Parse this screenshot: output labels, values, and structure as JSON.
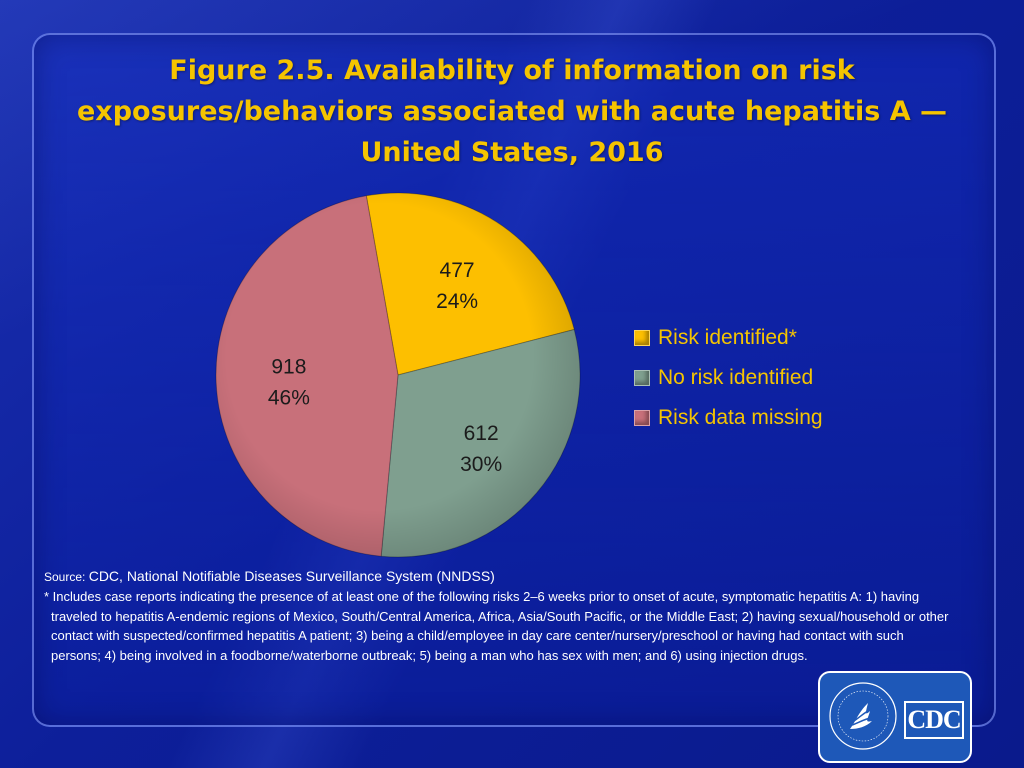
{
  "title": "Figure 2.5. Availability of information on risk exposures/behaviors associated with acute hepatitis A — United States, 2016",
  "chart_data": {
    "type": "pie",
    "slices": [
      {
        "name": "Risk identified*",
        "value": 477,
        "percent_label": "24%",
        "color": "#fdbf00"
      },
      {
        "name": "No risk identified",
        "value": 612,
        "percent_label": "30%",
        "color": "#7f9f8f"
      },
      {
        "name": "Risk data missing",
        "value": 918,
        "percent_label": "46%",
        "color": "#c8707a"
      }
    ],
    "legend_position": "right"
  },
  "source": {
    "prefix": "Source: ",
    "text": "CDC, National Notifiable Diseases Surveillance System (NNDSS)"
  },
  "footnote": "* Includes case reports indicating the presence of at least one of the following risks 2–6 weeks prior to onset of acute, symptomatic hepatitis A: 1)  having traveled to hepatitis A-endemic regions of Mexico, South/Central America,  Africa,  Asia/South Pacific, or the Middle East; 2) having sexual/household or other contact with suspected/confirmed hepatitis A patient; 3) being a child/employee in day care center/nursery/preschool  or having had contact with such persons; 4) being involved in a foodborne/waterborne outbreak; 5) being a man who has sex with men; and 6) using injection drugs.",
  "logo": {
    "text": "CDC",
    "icon": "hhs-eagle-icon"
  }
}
